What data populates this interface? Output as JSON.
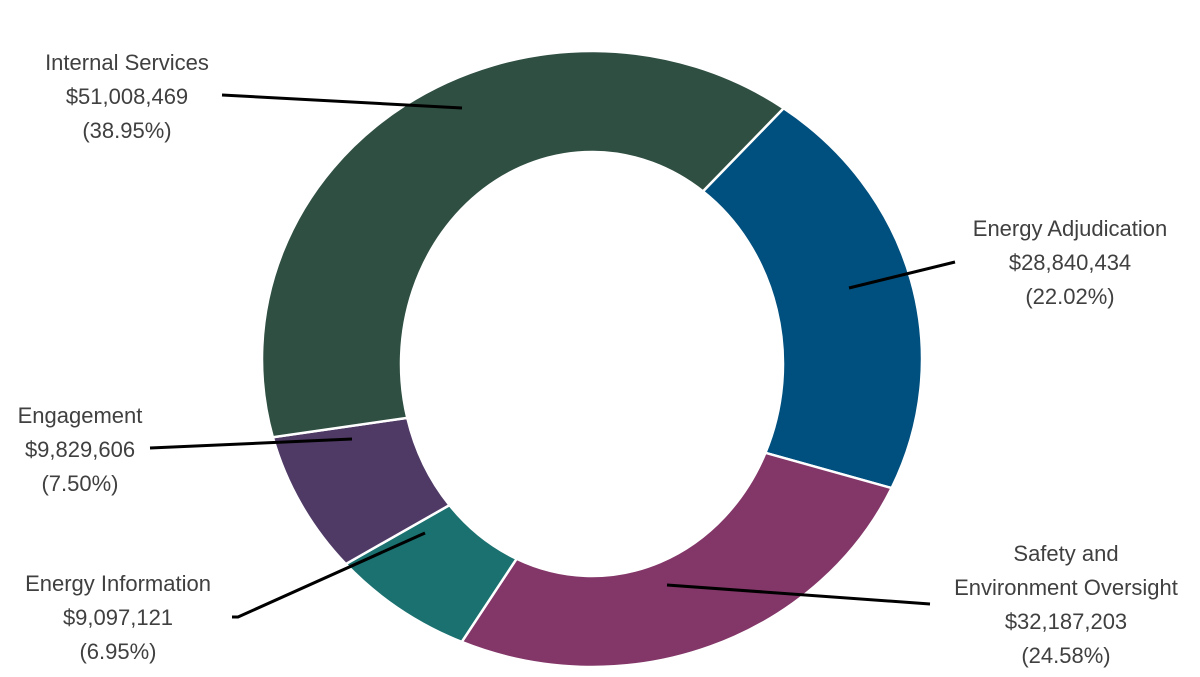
{
  "chart_data": {
    "type": "pie",
    "donut": true,
    "slices": [
      {
        "label": "Energy Adjudication",
        "value": 28840434,
        "value_text": "$28,840,434",
        "percent_text": "(22.02%)",
        "percent": 22.02,
        "color": "#00507f"
      },
      {
        "label": "Safety and Environment Oversight",
        "label_lines": [
          "Safety and",
          "Environment Oversight"
        ],
        "value": 32187203,
        "value_text": "$32,187,203",
        "percent_text": "(24.58%)",
        "percent": 24.58,
        "color": "#833668"
      },
      {
        "label": "Energy Information",
        "value": 9097121,
        "value_text": "$9,097,121",
        "percent_text": "(6.95%)",
        "percent": 6.95,
        "color": "#1a7170"
      },
      {
        "label": "Engagement",
        "value": 9829606,
        "value_text": "$9,829,606",
        "percent_text": "(7.50%)",
        "percent": 7.5,
        "color": "#4f3a66"
      },
      {
        "label": "Internal Services",
        "value": 51008469,
        "value_text": "$51,008,469",
        "percent_text": "(38.95%)",
        "percent": 38.95,
        "color": "#2f4f42"
      }
    ],
    "legend": "none",
    "data_labels": "outside-with-leader-lines"
  }
}
